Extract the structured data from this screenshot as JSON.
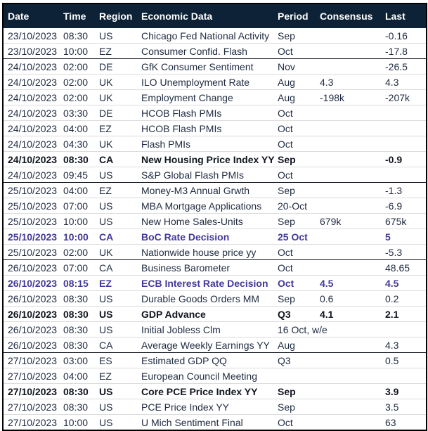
{
  "table": {
    "columns": [
      "Date",
      "Time",
      "Region",
      "Economic Data",
      "Period",
      "Consensus",
      "Last"
    ],
    "rows": [
      {
        "date": "23/10/2023",
        "time": "08:30",
        "region": "US",
        "data": "Chicago Fed National Activity",
        "period": "Sep",
        "consensus": "",
        "last": "-0.16",
        "style": "normal",
        "new_day": false
      },
      {
        "date": "23/10/2023",
        "time": "10:00",
        "region": "EZ",
        "data": "Consumer Confid. Flash",
        "period": "Oct",
        "consensus": "",
        "last": "-17.8",
        "style": "normal",
        "new_day": false
      },
      {
        "date": "24/10/2023",
        "time": "02:00",
        "region": "DE",
        "data": "GfK Consumer Sentiment",
        "period": "Nov",
        "consensus": "",
        "last": "-26.5",
        "style": "normal",
        "new_day": true
      },
      {
        "date": "24/10/2023",
        "time": "02:00",
        "region": "UK",
        "data": "ILO Unemployment Rate",
        "period": "Aug",
        "consensus": "4.3",
        "last": "4.3",
        "style": "normal",
        "new_day": false
      },
      {
        "date": "24/10/2023",
        "time": "02:00",
        "region": "UK",
        "data": "Employment Change",
        "period": "Aug",
        "consensus": "-198k",
        "last": "-207k",
        "style": "normal",
        "new_day": false
      },
      {
        "date": "24/10/2023",
        "time": "03:30",
        "region": "DE",
        "data": "HCOB Flash PMIs",
        "period": "Oct",
        "consensus": "",
        "last": "",
        "style": "normal",
        "new_day": false
      },
      {
        "date": "24/10/2023",
        "time": "04:00",
        "region": "EZ",
        "data": "HCOB Flash PMIs",
        "period": "Oct",
        "consensus": "",
        "last": "",
        "style": "normal",
        "new_day": false
      },
      {
        "date": "24/10/2023",
        "time": "04:30",
        "region": "UK",
        "data": "Flash PMIs",
        "period": "Oct",
        "consensus": "",
        "last": "",
        "style": "normal",
        "new_day": false
      },
      {
        "date": "24/10/2023",
        "time": "08:30",
        "region": "CA",
        "data": "New Housing Price Index YY",
        "period": "Sep",
        "consensus": "",
        "last": "-0.9",
        "style": "bold",
        "new_day": false
      },
      {
        "date": "24/10/2023",
        "time": "09:45",
        "region": "US",
        "data": "S&P Global Flash PMIs",
        "period": "Oct",
        "consensus": "",
        "last": "",
        "style": "normal",
        "new_day": false
      },
      {
        "date": "25/10/2023",
        "time": "04:00",
        "region": "EZ",
        "data": "Money-M3 Annual Grwth",
        "period": "Sep",
        "consensus": "",
        "last": "-1.3",
        "style": "normal",
        "new_day": true
      },
      {
        "date": "25/10/2023",
        "time": "07:00",
        "region": "US",
        "data": "MBA Mortgage Applications",
        "period": "20-Oct",
        "consensus": "",
        "last": "-6.9",
        "style": "normal",
        "new_day": false
      },
      {
        "date": "25/10/2023",
        "time": "10:00",
        "region": "US",
        "data": "New Home Sales-Units",
        "period": "Sep",
        "consensus": "679k",
        "last": "675k",
        "style": "normal",
        "new_day": false
      },
      {
        "date": "25/10/2023",
        "time": "10:00",
        "region": "CA",
        "data": "BoC Rate Decision",
        "period": "25 Oct",
        "consensus": "",
        "last": "5",
        "style": "purple",
        "new_day": false
      },
      {
        "date": "25/10/2023",
        "time": "02:00",
        "region": "UK",
        "data": "Nationwide house price yy",
        "period": "Oct",
        "consensus": "",
        "last": "-5.3",
        "style": "normal",
        "new_day": false
      },
      {
        "date": "26/10/2023",
        "time": "07:00",
        "region": "CA",
        "data": "Business Barometer",
        "period": "Oct",
        "consensus": "",
        "last": "48.65",
        "style": "normal",
        "new_day": true
      },
      {
        "date": "26/10/2023",
        "time": "08:15",
        "region": "EZ",
        "data": "ECB Interest Rate Decision",
        "period": "Oct",
        "consensus": "4.5",
        "last": "4.5",
        "style": "purple",
        "new_day": false
      },
      {
        "date": "26/10/2023",
        "time": "08:30",
        "region": "US",
        "data": "Durable Goods Orders MM",
        "period": "Sep",
        "consensus": "0.6",
        "last": "0.2",
        "style": "normal",
        "new_day": false
      },
      {
        "date": "26/10/2023",
        "time": "08:30",
        "region": "US",
        "data": "GDP Advance",
        "period": "Q3",
        "consensus": "4.1",
        "last": "2.1",
        "style": "bold",
        "new_day": false
      },
      {
        "date": "26/10/2023",
        "time": "08:30",
        "region": "US",
        "data": "Initial Jobless Clm",
        "period": "16 Oct, w/e",
        "consensus": "",
        "last": "",
        "style": "normal",
        "new_day": false
      },
      {
        "date": "26/10/2023",
        "time": "08:30",
        "region": "CA",
        "data": "Average Weekly Earnings YY",
        "period": "Aug",
        "consensus": "",
        "last": "4.3",
        "style": "normal",
        "new_day": false
      },
      {
        "date": "27/10/2023",
        "time": "03:00",
        "region": "ES",
        "data": "Estimated GDP QQ",
        "period": "Q3",
        "consensus": "",
        "last": "0.5",
        "style": "normal",
        "new_day": true
      },
      {
        "date": "27/10/2023",
        "time": "04:00",
        "region": "EZ",
        "data": "European Council Meeting",
        "period": "",
        "consensus": "",
        "last": "",
        "style": "normal",
        "new_day": false
      },
      {
        "date": "27/10/2023",
        "time": "08:30",
        "region": "US",
        "data": "Core PCE Price Index YY",
        "period": "Sep",
        "consensus": "",
        "last": "3.9",
        "style": "bold",
        "new_day": false
      },
      {
        "date": "27/10/2023",
        "time": "08:30",
        "region": "US",
        "data": "PCE Price Index YY",
        "period": "Sep",
        "consensus": "",
        "last": "3.5",
        "style": "normal",
        "new_day": false
      },
      {
        "date": "27/10/2023",
        "time": "10:00",
        "region": "US",
        "data": "U Mich Sentiment Final",
        "period": "Oct",
        "consensus": "",
        "last": "63",
        "style": "normal",
        "new_day": false
      }
    ]
  },
  "colors": {
    "header_bg": "#0d2237",
    "header_text": "#ffffff",
    "body_text": "#1f2b40",
    "highlight_purple": "#43399b",
    "row_divider": "#dcdcdc",
    "group_divider": "#10151f",
    "outer_border": "#000000"
  }
}
